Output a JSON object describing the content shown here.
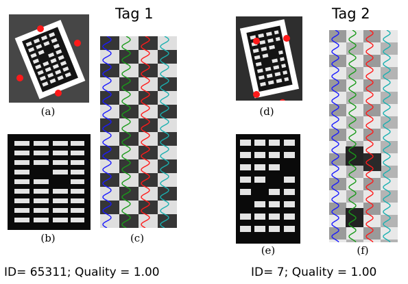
{
  "tags": [
    {
      "title": "Tag 1",
      "id_line": "ID= 65311; Quality = 1.00",
      "captions": [
        "(a)",
        "(b)",
        "(c)"
      ],
      "colors": {
        "marker": "#ff1a1a",
        "curves": [
          "#1a1aff",
          "#1a9a1a",
          "#ff1a1a",
          "#1ab0b0"
        ]
      }
    },
    {
      "title": "Tag 2",
      "id_line": "ID= 7; Quality = 1.00",
      "captions": [
        "(d)",
        "(e)",
        "(f)"
      ],
      "colors": {
        "marker": "#ff1a1a",
        "curves": [
          "#1a1aff",
          "#1a9a1a",
          "#ff1a1a",
          "#1ab0b0"
        ]
      }
    }
  ]
}
